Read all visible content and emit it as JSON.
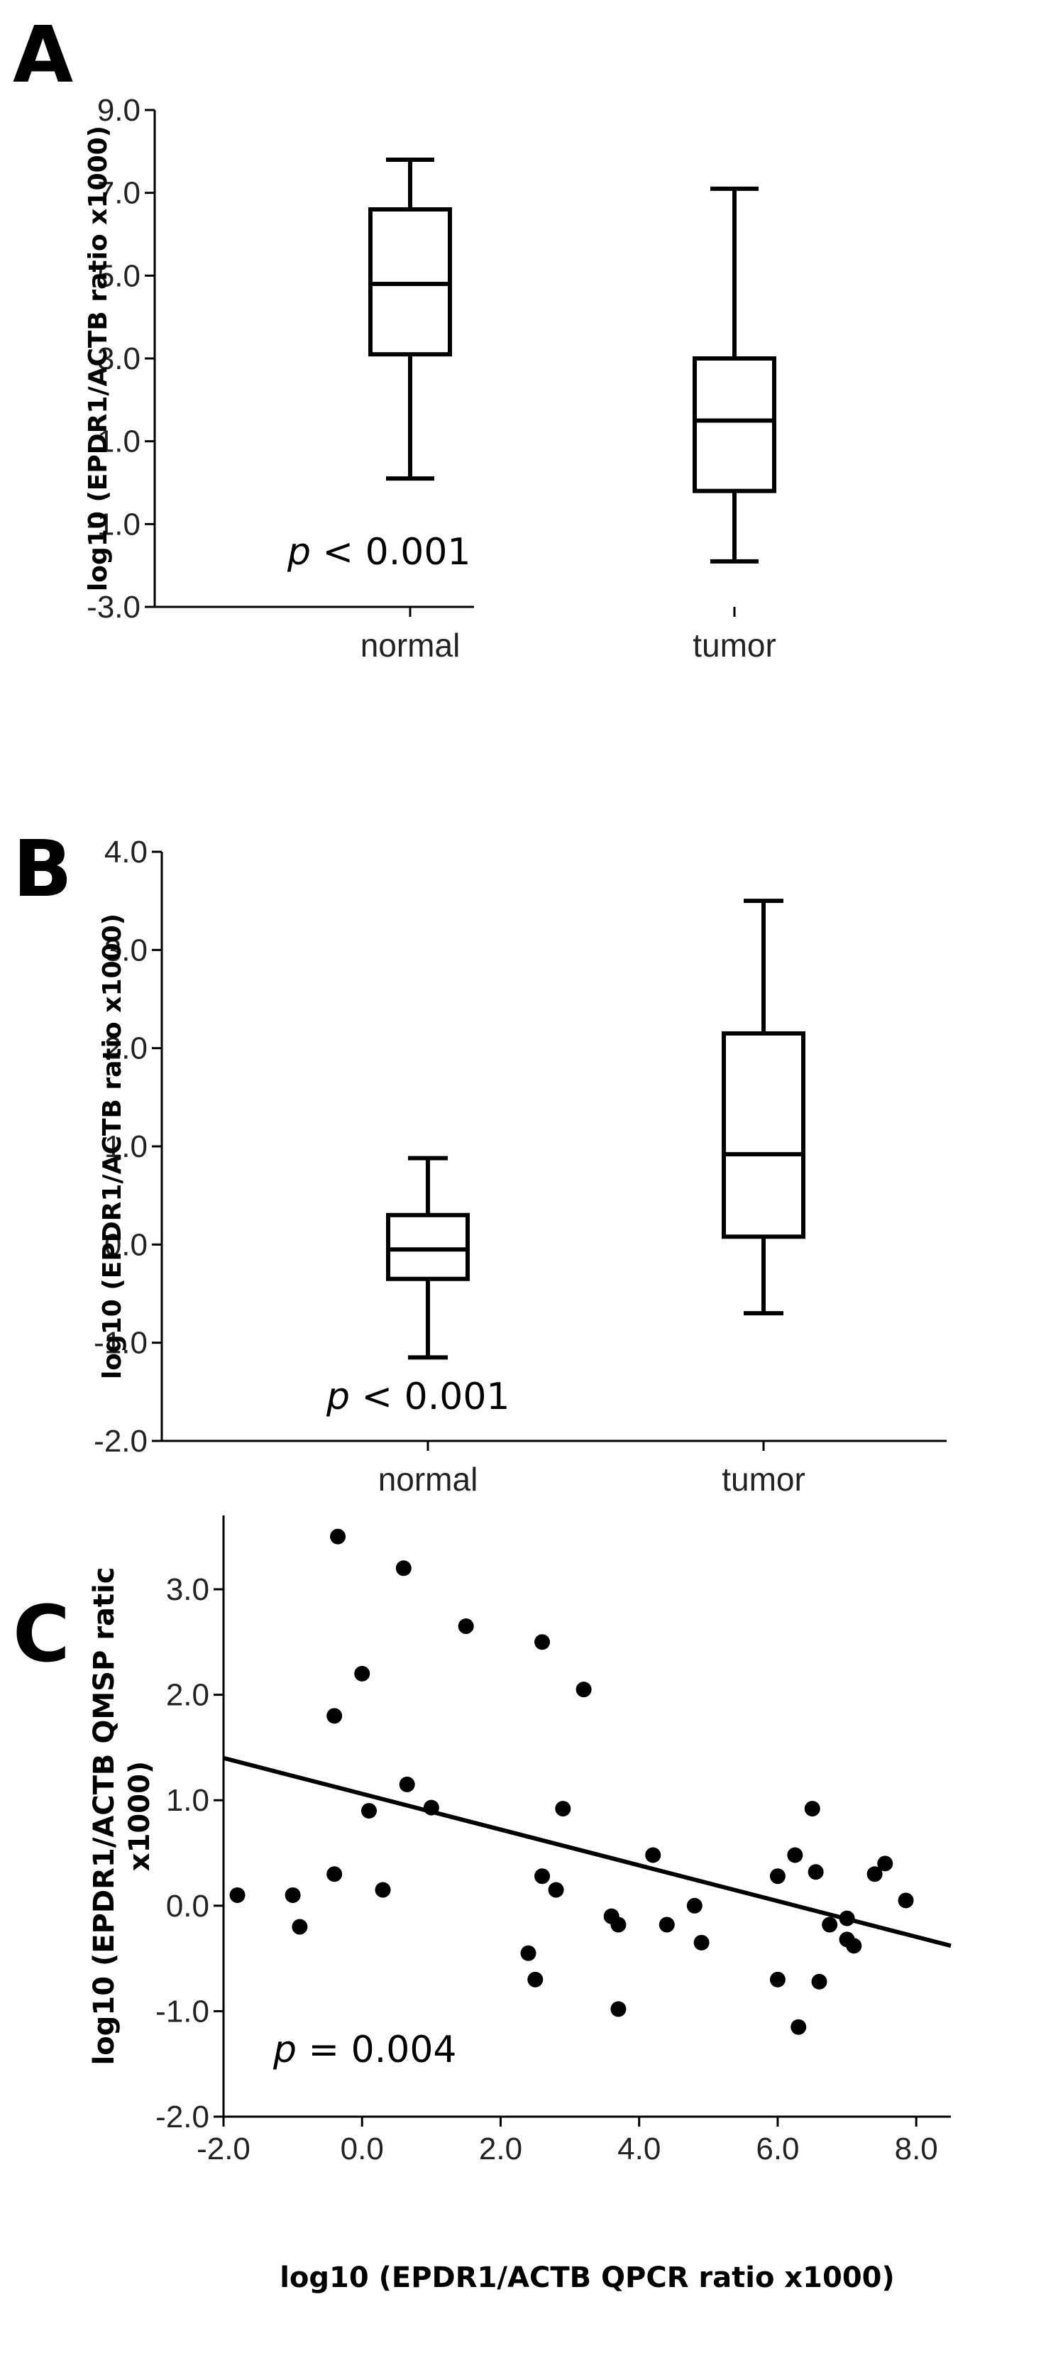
{
  "panels": {
    "a": {
      "letter": "A"
    },
    "b": {
      "letter": "B"
    },
    "c": {
      "letter": "C"
    }
  },
  "colors": {
    "ink": "#000000",
    "background": "#ffffff"
  },
  "chart_data": [
    {
      "panel": "A",
      "type": "boxplot",
      "ylabel": "log10 (EPDR1/ACTB ratio x1000)",
      "ylim": [
        -3.0,
        9.0
      ],
      "yticks": [
        -3.0,
        -1.0,
        1.0,
        3.0,
        5.0,
        7.0,
        9.0
      ],
      "categories": [
        "normal",
        "tumor"
      ],
      "boxes": [
        {
          "category": "normal",
          "min": 0.1,
          "q1": 3.1,
          "median": 4.8,
          "q3": 6.6,
          "max": 7.8
        },
        {
          "category": "tumor",
          "min": -1.9,
          "q1": -0.2,
          "median": 1.5,
          "q3": 3.0,
          "max": 7.1
        }
      ],
      "annotation": {
        "p": "p",
        "rest": " < 0.001"
      }
    },
    {
      "panel": "B",
      "type": "boxplot",
      "ylabel": "log10 (EPDR1/ACTB ratio x1000)",
      "ylim": [
        -2.0,
        4.0
      ],
      "yticks": [
        -2.0,
        -1.0,
        0.0,
        1.0,
        2.0,
        3.0,
        4.0
      ],
      "categories": [
        "normal",
        "tumor"
      ],
      "boxes": [
        {
          "category": "normal",
          "min": -1.15,
          "q1": -0.35,
          "median": -0.05,
          "q3": 0.3,
          "max": 0.88
        },
        {
          "category": "tumor",
          "min": -0.7,
          "q1": 0.08,
          "median": 0.92,
          "q3": 2.15,
          "max": 3.5
        }
      ],
      "annotation": {
        "p": "p",
        "rest": " < 0.001"
      }
    },
    {
      "panel": "C",
      "type": "scatter",
      "xlabel": "log10 (EPDR1/ACTB QPCR ratio x1000)",
      "ylabel_line1": "log10 (EPDR1/ACTB QMSP ratic",
      "ylabel_line2": "x1000)",
      "xlim": [
        -2.0,
        8.5
      ],
      "ylim": [
        -2.0,
        3.7
      ],
      "xticks": [
        -2.0,
        0.0,
        2.0,
        4.0,
        6.0,
        8.0
      ],
      "yticks": [
        -2.0,
        -1.0,
        0.0,
        1.0,
        2.0,
        3.0
      ],
      "points": [
        {
          "x": -1.8,
          "y": 0.1
        },
        {
          "x": -1.0,
          "y": 0.1
        },
        {
          "x": -0.9,
          "y": -0.2
        },
        {
          "x": -0.4,
          "y": 1.8
        },
        {
          "x": -0.4,
          "y": 0.3
        },
        {
          "x": -0.35,
          "y": 3.5
        },
        {
          "x": 0.0,
          "y": 2.2
        },
        {
          "x": 0.1,
          "y": 0.9
        },
        {
          "x": 0.3,
          "y": 0.15
        },
        {
          "x": 0.6,
          "y": 3.2
        },
        {
          "x": 0.65,
          "y": 1.15
        },
        {
          "x": 1.0,
          "y": 0.93
        },
        {
          "x": 1.5,
          "y": 2.65
        },
        {
          "x": 2.4,
          "y": -0.45
        },
        {
          "x": 2.5,
          "y": -0.7
        },
        {
          "x": 2.6,
          "y": 0.28
        },
        {
          "x": 2.6,
          "y": 2.5
        },
        {
          "x": 2.8,
          "y": 0.15
        },
        {
          "x": 2.9,
          "y": 0.92
        },
        {
          "x": 3.2,
          "y": 2.05
        },
        {
          "x": 3.6,
          "y": -0.1
        },
        {
          "x": 3.7,
          "y": -0.18
        },
        {
          "x": 3.7,
          "y": -0.98
        },
        {
          "x": 4.2,
          "y": 0.48
        },
        {
          "x": 4.4,
          "y": -0.18
        },
        {
          "x": 4.8,
          "y": 0.0
        },
        {
          "x": 4.9,
          "y": -0.35
        },
        {
          "x": 6.0,
          "y": 0.28
        },
        {
          "x": 6.0,
          "y": -0.7
        },
        {
          "x": 6.25,
          "y": 0.48
        },
        {
          "x": 6.3,
          "y": -1.15
        },
        {
          "x": 6.5,
          "y": 0.92
        },
        {
          "x": 6.55,
          "y": 0.32
        },
        {
          "x": 6.6,
          "y": -0.72
        },
        {
          "x": 6.75,
          "y": -0.18
        },
        {
          "x": 7.0,
          "y": -0.32
        },
        {
          "x": 7.0,
          "y": -0.12
        },
        {
          "x": 7.1,
          "y": -0.38
        },
        {
          "x": 7.4,
          "y": 0.3
        },
        {
          "x": 7.55,
          "y": 0.4
        },
        {
          "x": 7.85,
          "y": 0.05
        }
      ],
      "regression": {
        "x": [
          -2.0,
          8.5
        ],
        "y": [
          1.4,
          -0.38
        ]
      },
      "annotation": {
        "p": "p",
        "rest": " = 0.004"
      }
    }
  ]
}
